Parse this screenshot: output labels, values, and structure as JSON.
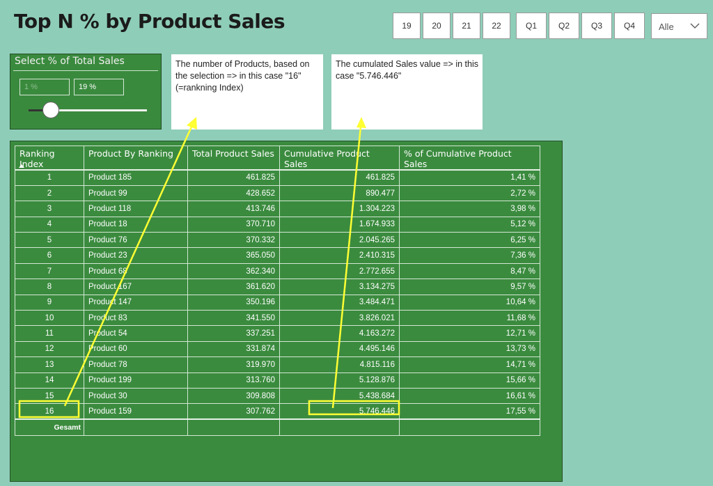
{
  "title": "Top N % by Product Sales",
  "slicer": {
    "buttons": [
      "19",
      "20",
      "21",
      "22",
      "Q1",
      "Q2",
      "Q3",
      "Q4"
    ],
    "dropdown_value": "Alle"
  },
  "pct_slicer": {
    "title": "Select % of Total Sales",
    "min_value": "1 %",
    "max_value": "19 %",
    "slider_level": 0.19
  },
  "notes": {
    "n1": "The number of Products, based on the selection => in this case \"16\" (=rankning Index)",
    "n2": "The cumulated Sales value => in this case \"5.746.446\""
  },
  "table": {
    "headers": [
      "Ranking Index",
      "Product By Ranking",
      "Total Product Sales",
      "Cumulative Product Sales",
      "% of Cumulative Product Sales"
    ],
    "rows": [
      [
        "1",
        "Product 185",
        "461.825",
        "461.825",
        "1,41 %"
      ],
      [
        "2",
        "Product 99",
        "428.652",
        "890.477",
        "2,72 %"
      ],
      [
        "3",
        "Product 118",
        "413.746",
        "1.304.223",
        "3,98 %"
      ],
      [
        "4",
        "Product 18",
        "370.710",
        "1.674.933",
        "5,12 %"
      ],
      [
        "5",
        "Product 76",
        "370.332",
        "2.045.265",
        "6,25 %"
      ],
      [
        "6",
        "Product 23",
        "365.050",
        "2.410.315",
        "7,36 %"
      ],
      [
        "7",
        "Product 68",
        "362.340",
        "2.772.655",
        "8,47 %"
      ],
      [
        "8",
        "Product 167",
        "361.620",
        "3.134.275",
        "9,57 %"
      ],
      [
        "9",
        "Product 147",
        "350.196",
        "3.484.471",
        "10,64 %"
      ],
      [
        "10",
        "Product 83",
        "341.550",
        "3.826.021",
        "11,68 %"
      ],
      [
        "11",
        "Product 54",
        "337.251",
        "4.163.272",
        "12,71 %"
      ],
      [
        "12",
        "Product 60",
        "331.874",
        "4.495.146",
        "13,73 %"
      ],
      [
        "13",
        "Product 78",
        "319.970",
        "4.815.116",
        "14,71 %"
      ],
      [
        "14",
        "Product 199",
        "313.760",
        "5.128.876",
        "15,66 %"
      ],
      [
        "15",
        "Product 30",
        "309.808",
        "5.438.684",
        "16,61 %"
      ],
      [
        "16",
        "Product 159",
        "307.762",
        "5.746.446",
        "17,55 %"
      ]
    ],
    "total_label": "Gesamt"
  },
  "colors": {
    "page_background": "#8ecdb8",
    "panel_green": "#3b8b3f",
    "annotation_yellow": "#ffff33"
  }
}
